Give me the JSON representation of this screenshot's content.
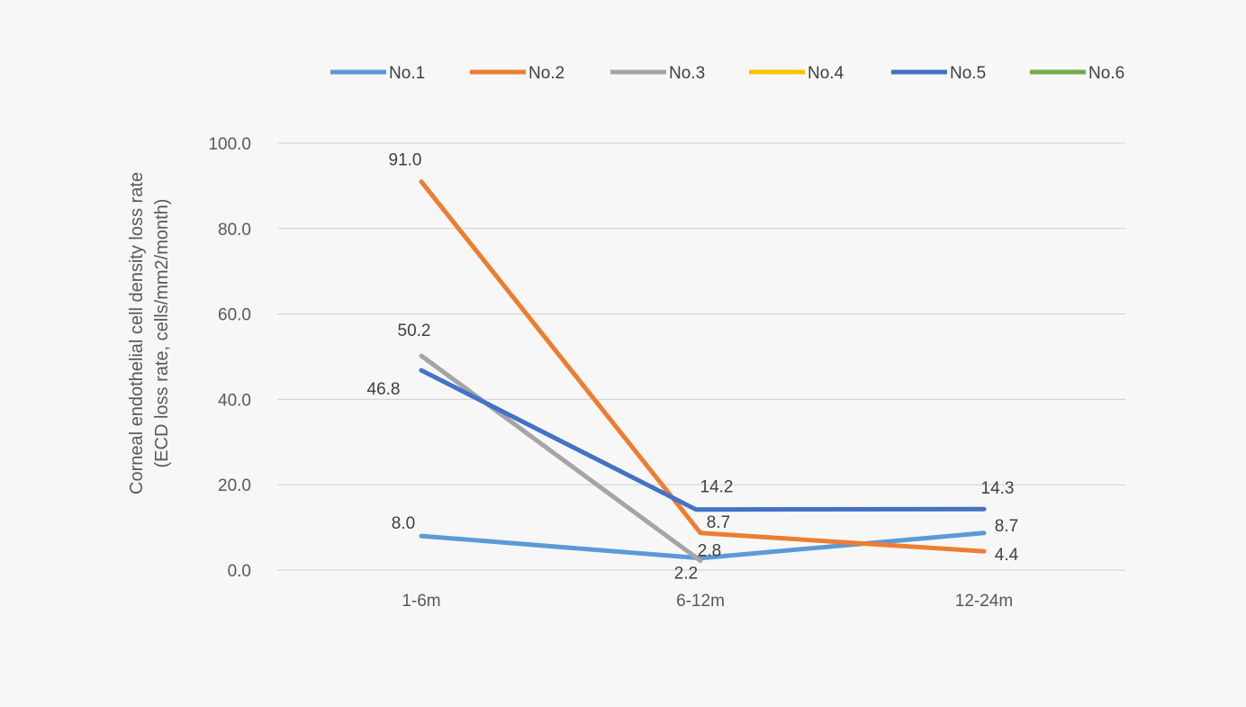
{
  "chart_data": {
    "type": "line",
    "title": "",
    "xlabel": "",
    "ylabel": "Corneal endothelial cell density loss rate",
    "ylabel_line2": "(ECD loss rate, cells/mm2/month)",
    "categories": [
      "1-6m",
      "6-12m",
      "12-24m"
    ],
    "ylim": [
      0,
      100
    ],
    "yticks": [
      0,
      20,
      40,
      60,
      80,
      100
    ],
    "ytick_labels": [
      "0.0",
      "20.0",
      "40.0",
      "60.0",
      "80.0",
      "100.0"
    ],
    "grid": true,
    "legend_position": "top",
    "series": [
      {
        "name": "No.1",
        "color": "#5b9bd5",
        "values": [
          8.0,
          2.8,
          8.7
        ],
        "labels": [
          "8.0",
          "2.8",
          "8.7"
        ]
      },
      {
        "name": "No.2",
        "color": "#ed7d31",
        "values": [
          91.0,
          8.7,
          4.4
        ],
        "labels": [
          "91.0",
          "8.7",
          "4.4"
        ]
      },
      {
        "name": "No.3",
        "color": "#a5a5a5",
        "values": [
          50.2,
          2.2,
          null
        ],
        "labels": [
          "50.2",
          "2.2",
          null
        ]
      },
      {
        "name": "No.4",
        "color": "#ffc000",
        "values": [
          null,
          null,
          null
        ],
        "labels": [
          null,
          null,
          null
        ]
      },
      {
        "name": "No.5",
        "color": "#4472c4",
        "values": [
          46.8,
          14.2,
          14.3
        ],
        "labels": [
          "46.8",
          "14.2",
          "14.3"
        ]
      },
      {
        "name": "No.6",
        "color": "#70ad47",
        "values": [
          null,
          null,
          null
        ],
        "labels": [
          null,
          null,
          null
        ]
      }
    ]
  }
}
